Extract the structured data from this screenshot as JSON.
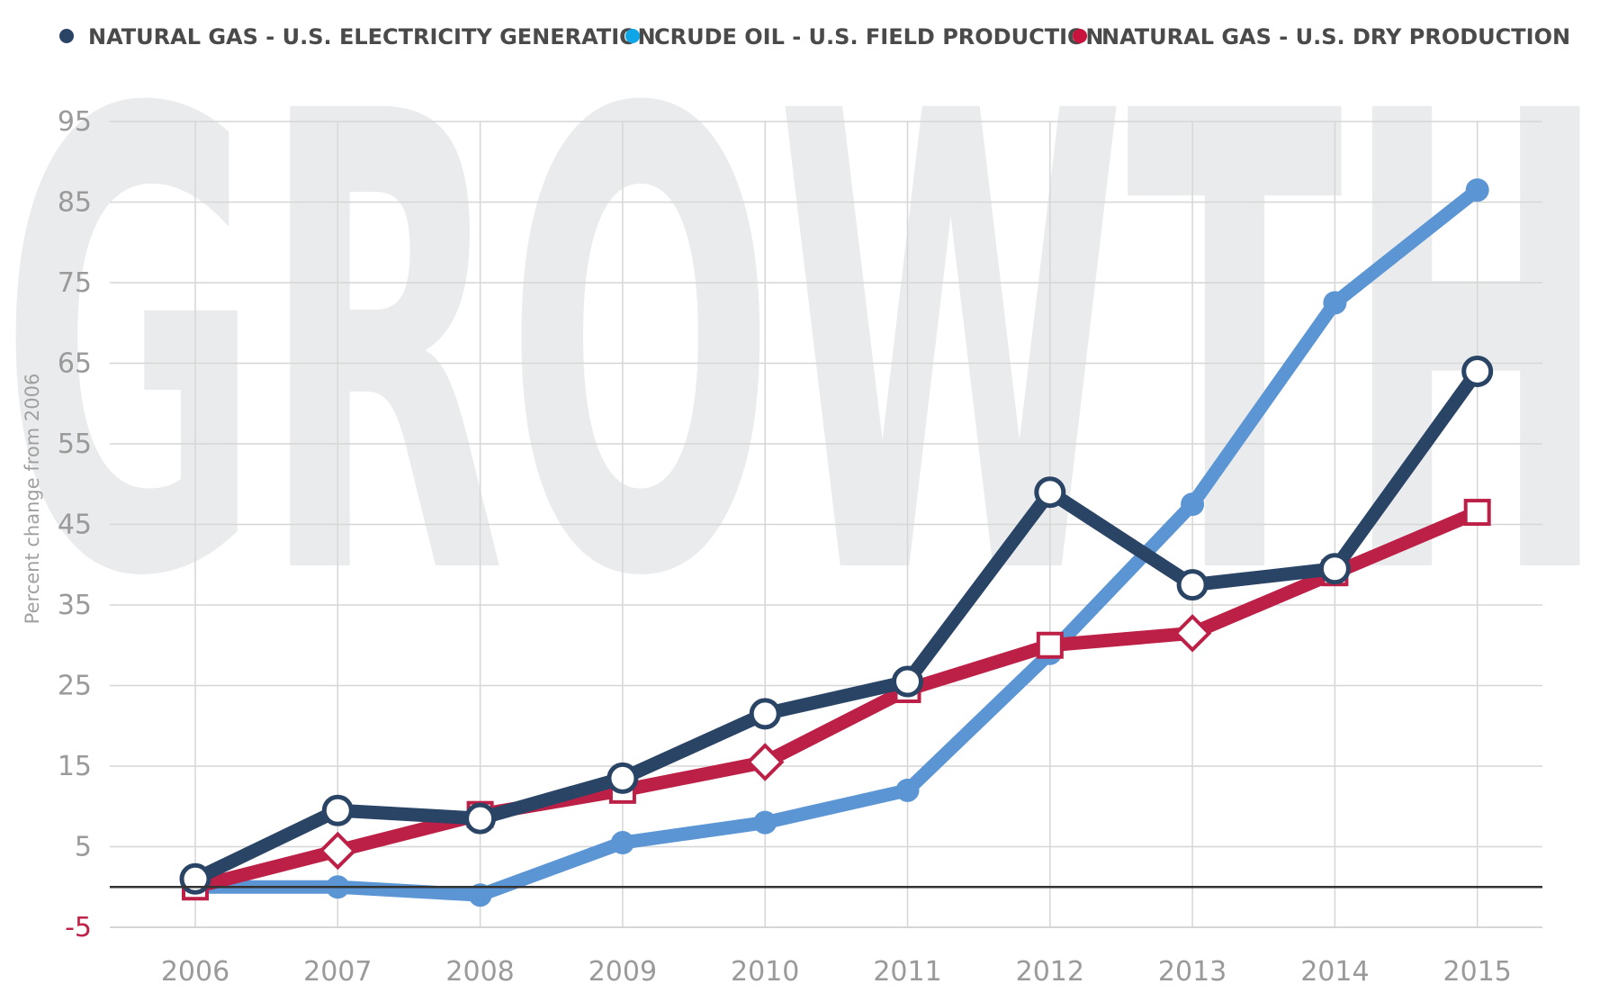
{
  "watermark": "GROWTH",
  "chart_data": {
    "type": "line",
    "title": "",
    "xlabel": "",
    "ylabel": "Percent change from 2006",
    "x": [
      2006,
      2007,
      2008,
      2009,
      2010,
      2011,
      2012,
      2013,
      2014,
      2015
    ],
    "ylim": [
      -5,
      95
    ],
    "yticks": [
      95,
      85,
      75,
      65,
      55,
      45,
      35,
      25,
      15,
      5,
      -5
    ],
    "grid": true,
    "legend_position": "top",
    "series": [
      {
        "name": "NATURAL GAS -  U.S. ELECTRICITY GENERATION",
        "color": "#2a4466",
        "marker": "circle",
        "values": [
          1,
          9.5,
          8.5,
          13.5,
          21.5,
          25.5,
          49,
          37.5,
          39.5,
          64
        ]
      },
      {
        "name": "CRUDE OIL - U.S. FIELD PRODUCTION",
        "color": "#5b95d4",
        "marker": "dot",
        "values": [
          0,
          0,
          -1,
          5.5,
          8,
          12,
          29,
          47.5,
          72.5,
          86.5
        ]
      },
      {
        "name": "NATURAL GAS - U.S. DRY PRODUCTION",
        "color": "#bc2046",
        "marker": "square",
        "values": [
          0,
          4.5,
          9,
          12,
          15.5,
          24.5,
          30,
          31.5,
          39,
          46.5
        ]
      }
    ]
  },
  "legend_dot_colors": [
    "#2a4466",
    "#0fa6e8",
    "#c8133f"
  ]
}
